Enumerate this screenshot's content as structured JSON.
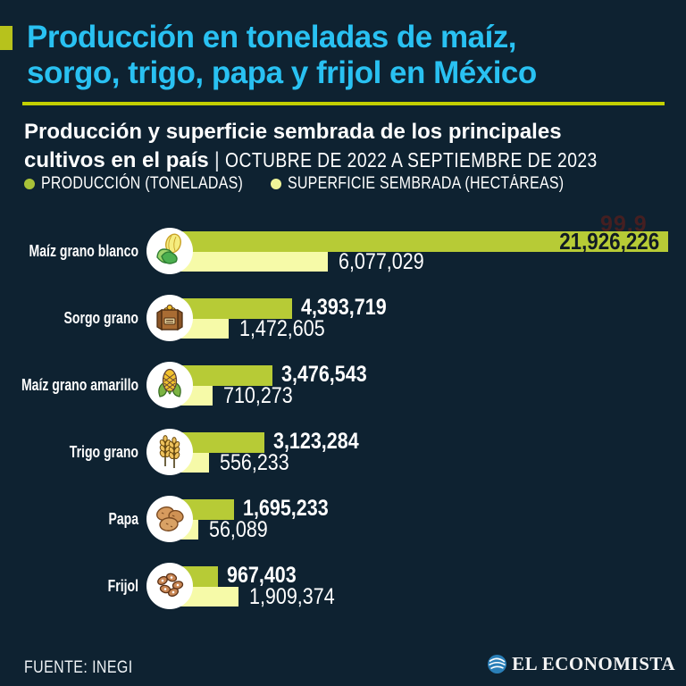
{
  "title": {
    "line1": "Producción en toneladas de maíz,",
    "line2": "sorgo, trigo, papa y frijol en México"
  },
  "subtitle": {
    "bold_line1": "Producción y superficie sembrada de los principales",
    "bold_line2": "cultivos en el país",
    "separator": "|",
    "period": "OCTUBRE DE 2022 A SEPTIEMBRE DE 2023"
  },
  "legend": {
    "production_label": "PRODUCCIÓN (TONELADAS)",
    "sown_label": "SUPERFICIE SEMBRADA (HECTÁREAS)"
  },
  "artifact_text": "99.9",
  "footer": {
    "source": "FUENTE: INEGI",
    "brand": "EL ECONOMISTA"
  },
  "colors": {
    "background": "#0e2231",
    "title_cyan": "#29c1f2",
    "accent_square": "#b7c21c",
    "divider": "#c3d002",
    "production_bar": "#b7cb36",
    "sown_bar": "#f6faa8",
    "legend_production_dot": "#a9c238",
    "legend_sown_dot": "#f0f598",
    "inside_value_text": "#101a24"
  },
  "chart_data": {
    "type": "bar",
    "orientation": "horizontal",
    "title": "Producción y superficie sembrada de los principales cultivos en el país",
    "period": "OCTUBRE DE 2022 A SEPTIEMBRE DE 2023",
    "legend_position": "top",
    "grid": false,
    "xlim": [
      0,
      21926226
    ],
    "categories": [
      "Maíz grano blanco",
      "Sorgo grano",
      "Maíz grano amarillo",
      "Trigo grano",
      "Papa",
      "Frijol"
    ],
    "icons": [
      "white-corn-icon",
      "sorghum-sack-icon",
      "yellow-corn-icon",
      "wheat-icon",
      "potatoes-icon",
      "beans-icon"
    ],
    "series": [
      {
        "name": "PRODUCCIÓN (TONELADAS)",
        "color": "#b7cb36",
        "values": [
          21926226,
          4393719,
          3476543,
          3123284,
          1695233,
          967403
        ],
        "labels": [
          "21,926,226",
          "4,393,719",
          "3,476,543",
          "3,123,284",
          "1,695,233",
          "967,403"
        ]
      },
      {
        "name": "SUPERFICIE SEMBRADA (HECTÁREAS)",
        "color": "#f6faa8",
        "values": [
          6077029,
          1472605,
          710273,
          556233,
          56089,
          1909374
        ],
        "labels": [
          "6,077,029",
          "1,472,605",
          "710,273",
          "556,233",
          "56,089",
          "1,909,374"
        ]
      }
    ],
    "production_label_inside": [
      true,
      false,
      false,
      false,
      false,
      false
    ]
  }
}
